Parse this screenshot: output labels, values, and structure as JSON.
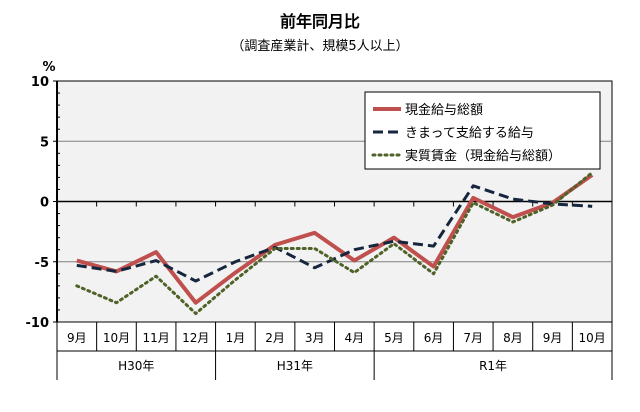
{
  "chart_data": {
    "type": "line",
    "title": "前年同月比",
    "subtitle": "（調査産業計、規模5人以上）",
    "ylabel": "%",
    "ylim": [
      -10,
      10
    ],
    "yticks": [
      "10",
      "5",
      "0",
      "-5",
      "-10"
    ],
    "ytick_values": [
      10,
      5,
      0,
      -5,
      -10
    ],
    "categories": [
      "9月",
      "10月",
      "11月",
      "12月",
      "1月",
      "2月",
      "3月",
      "4月",
      "5月",
      "6月",
      "7月",
      "8月",
      "9月",
      "10月"
    ],
    "year_groups": [
      {
        "label": "H30年",
        "span": 4
      },
      {
        "label": "H31年",
        "span": 4
      },
      {
        "label": "R1年",
        "span": 6
      }
    ],
    "legend_position": "top-right",
    "series": [
      {
        "name": "現金給与総額",
        "color": "#c0504d",
        "style": "solid",
        "values": [
          -4.9,
          -5.8,
          -4.2,
          -8.4,
          -5.9,
          -3.6,
          -2.6,
          -4.9,
          -3.0,
          -5.4,
          0.3,
          -1.3,
          -0.1,
          2.2
        ]
      },
      {
        "name": "きまって支給する給与",
        "color": "#17263f",
        "style": "dashed",
        "values": [
          -5.3,
          -5.8,
          -4.9,
          -6.6,
          -5.0,
          -3.8,
          -5.5,
          -4.0,
          -3.3,
          -3.7,
          1.3,
          0.2,
          -0.2,
          -0.4
        ]
      },
      {
        "name": "実質賃金（現金給与総額）",
        "color": "#4f6228",
        "style": "dotted",
        "values": [
          -7.0,
          -8.4,
          -6.2,
          -9.3,
          -6.5,
          -3.9,
          -3.9,
          -5.9,
          -3.5,
          -6.0,
          -0.1,
          -1.7,
          -0.3,
          2.4
        ]
      }
    ]
  }
}
